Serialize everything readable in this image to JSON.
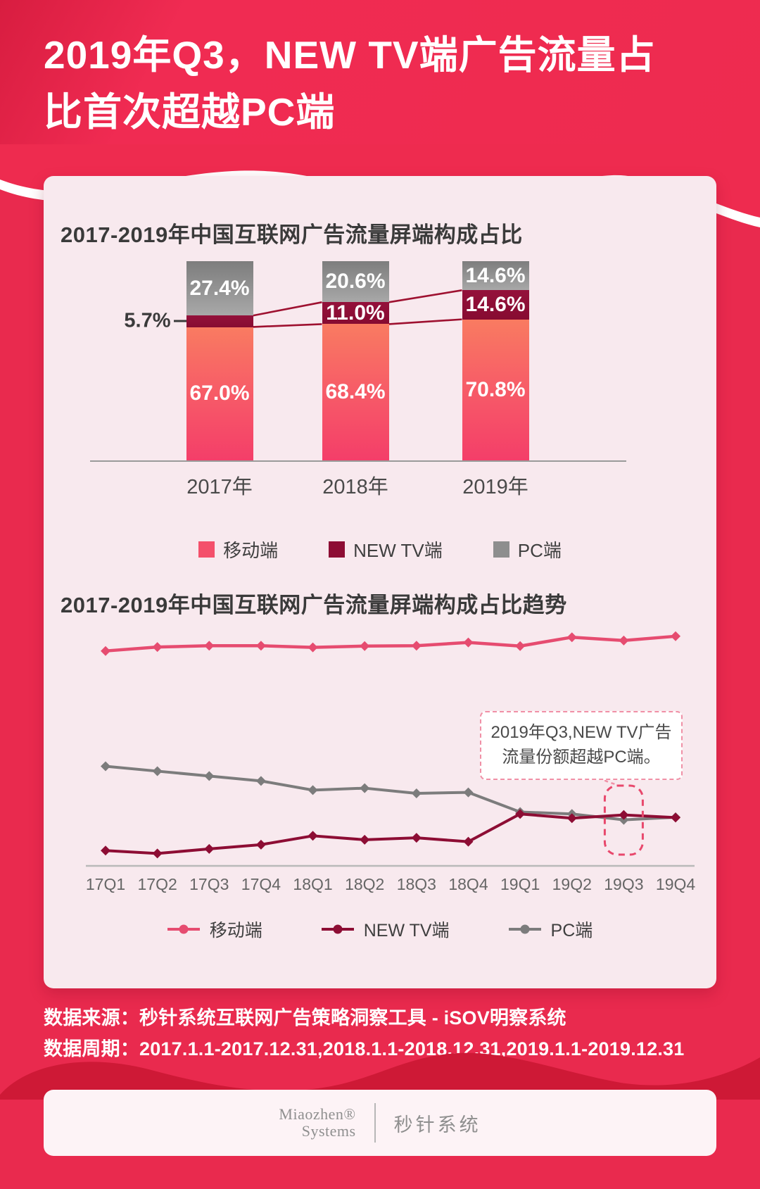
{
  "header": {
    "title_line1": "2019年Q3，NEW TV端广告流量占",
    "title_line2": "比首次超越PC端"
  },
  "colors": {
    "page_red": "#e92a4e",
    "dark_red_wave": "#ce1936",
    "card_pink": "#f8e9ee",
    "mobile": "#f4506b",
    "new_tv": "#8d0d34",
    "pc": "#8e8e8e",
    "highlight_dash": "#e8486c",
    "connector": "#9e1130"
  },
  "chart_data": [
    {
      "type": "bar",
      "stacked": true,
      "title": "2017-2019年中国互联网广告流量屏端构成占比",
      "categories": [
        "2017年",
        "2018年",
        "2019年"
      ],
      "series": [
        {
          "name": "移动端",
          "values": [
            67.0,
            68.4,
            70.8
          ],
          "color": "#f4506b"
        },
        {
          "name": "NEW TV端",
          "values": [
            5.7,
            11.0,
            14.6
          ],
          "color": "#8d0d34"
        },
        {
          "name": "PC端",
          "values": [
            27.4,
            20.6,
            14.6
          ],
          "color": "#8e8e8e"
        }
      ],
      "value_labels": [
        [
          "67.0%",
          "68.4%",
          "70.8%"
        ],
        [
          "5.7%",
          "11.0%",
          "14.6%"
        ],
        [
          "27.4%",
          "20.6%",
          "14.6%"
        ]
      ],
      "ylim": [
        0,
        100
      ],
      "legend_position": "bottom"
    },
    {
      "type": "line",
      "title": "2017-2019年中国互联网广告流量屏端构成占比趋势",
      "x": [
        "17Q1",
        "17Q2",
        "17Q3",
        "17Q4",
        "18Q1",
        "18Q2",
        "18Q3",
        "18Q4",
        "19Q1",
        "19Q2",
        "19Q3",
        "19Q4"
      ],
      "series": [
        {
          "name": "移动端",
          "color": "#e64c70",
          "values": [
            65.8,
            67.0,
            67.4,
            67.4,
            66.9,
            67.3,
            67.4,
            68.4,
            67.3,
            70.0,
            69.0,
            70.3
          ]
        },
        {
          "name": "NEW TV端",
          "color": "#8d0d34",
          "values": [
            4.7,
            3.8,
            5.2,
            6.5,
            9.2,
            8.0,
            8.6,
            7.4,
            15.9,
            14.6,
            15.6,
            14.8
          ]
        },
        {
          "name": "PC端",
          "color": "#7c7c7c",
          "values": [
            30.5,
            29.0,
            27.5,
            26.0,
            23.2,
            23.8,
            22.2,
            22.5,
            16.5,
            15.9,
            14.1,
            14.9
          ]
        }
      ],
      "ylim": [
        0,
        75
      ],
      "legend_position": "bottom",
      "annotation": {
        "line1": "2019年Q3,NEW TV广告",
        "line2": "流量份额超越PC端。",
        "highlight_x": "19Q3"
      }
    }
  ],
  "footer": {
    "source": "数据来源：秒针系统互联网广告策略洞察工具 - iSOV明察系统",
    "period": "数据周期：2017.1.1-2017.12.31,2018.1.1-2018.12.31,2019.1.1-2019.12.31"
  },
  "logo": {
    "brand_line1": "Miaozhen®",
    "brand_line2": "Systems",
    "brand_cn": "秒针系统"
  }
}
